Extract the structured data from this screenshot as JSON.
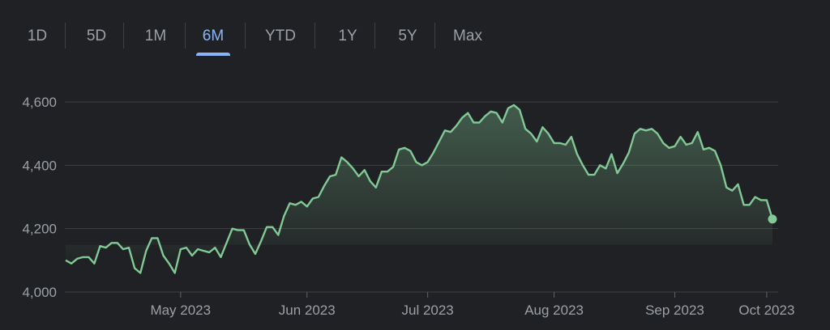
{
  "range_tabs": {
    "items": [
      "1D",
      "5D",
      "1M",
      "6M",
      "YTD",
      "1Y",
      "5Y",
      "Max"
    ],
    "selected": "6M",
    "accent_color": "#8ab4f8"
  },
  "chart_data": {
    "type": "area",
    "title": "",
    "xlabel": "",
    "ylabel": "",
    "ylim": [
      4000,
      4600
    ],
    "yticks": [
      4000,
      4200,
      4400,
      4600
    ],
    "ytick_labels": [
      "4,000",
      "4,200",
      "4,400",
      "4,600"
    ],
    "xticks": [
      "May 2023",
      "Jun 2023",
      "Jul 2023",
      "Aug 2023",
      "Sep 2023",
      "Oct 2023"
    ],
    "grid": true,
    "line_color": "#81c995",
    "series": [
      {
        "values": [
          4100,
          4090,
          4105,
          4110,
          4110,
          4090,
          4145,
          4140,
          4155,
          4155,
          4135,
          4140,
          4075,
          4060,
          4130,
          4170,
          4170,
          4115,
          4090,
          4060,
          4135,
          4140,
          4115,
          4135,
          4130,
          4125,
          4140,
          4110,
          4155,
          4200,
          4195,
          4195,
          4150,
          4120,
          4160,
          4205,
          4205,
          4180,
          4240,
          4280,
          4275,
          4285,
          4270,
          4295,
          4300,
          4335,
          4365,
          4370,
          4425,
          4410,
          4390,
          4365,
          4385,
          4350,
          4330,
          4380,
          4380,
          4395,
          4450,
          4455,
          4445,
          4410,
          4400,
          4410,
          4440,
          4475,
          4510,
          4505,
          4525,
          4550,
          4565,
          4535,
          4535,
          4555,
          4570,
          4565,
          4535,
          4580,
          4590,
          4575,
          4515,
          4500,
          4475,
          4520,
          4500,
          4470,
          4470,
          4465,
          4490,
          4435,
          4400,
          4370,
          4370,
          4400,
          4390,
          4435,
          4375,
          4405,
          4440,
          4500,
          4515,
          4510,
          4515,
          4500,
          4470,
          4455,
          4460,
          4490,
          4465,
          4470,
          4505,
          4450,
          4455,
          4445,
          4400,
          4330,
          4320,
          4340,
          4275,
          4275,
          4300,
          4290,
          4290,
          4230
        ]
      }
    ]
  }
}
